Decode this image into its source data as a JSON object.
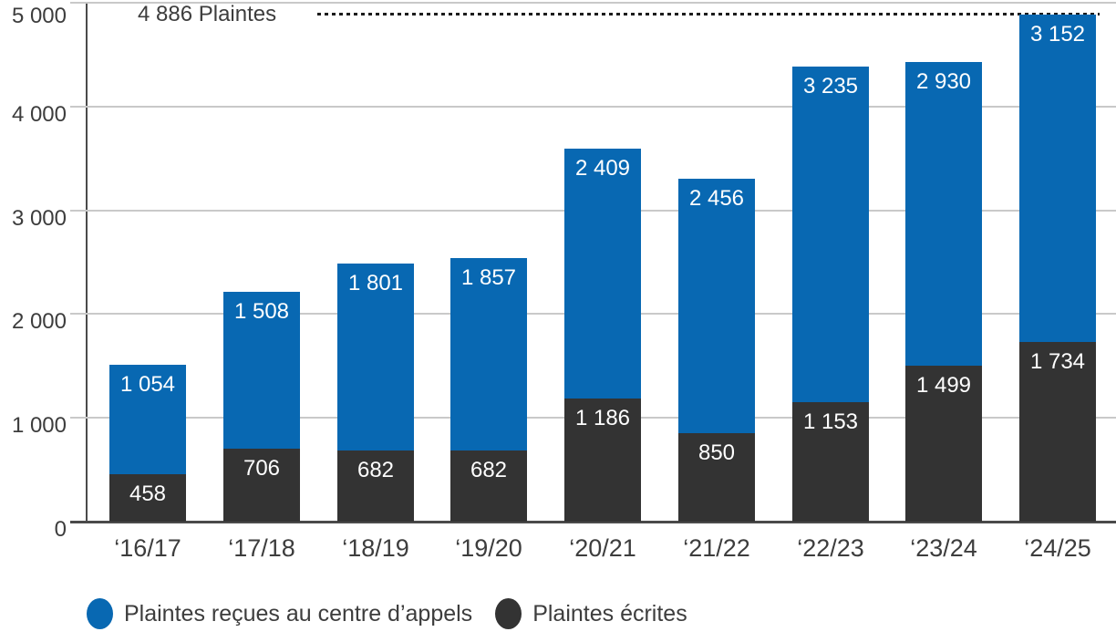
{
  "chart_data": {
    "type": "bar",
    "stacked": true,
    "title": "",
    "xlabel": "",
    "ylabel": "",
    "ylim": [
      0,
      5000
    ],
    "grid": true,
    "legend_position": "bottom",
    "categories": [
      "‘16/17",
      "‘17/18",
      "‘18/19",
      "‘19/20",
      "‘20/21",
      "‘21/22",
      "‘22/23",
      "‘23/24",
      "‘24/25"
    ],
    "series": [
      {
        "name": "Plaintes reçues au centre d’appels",
        "color": "#0868B2",
        "values": [
          1054,
          1508,
          1801,
          1857,
          2409,
          2456,
          3235,
          2930,
          3152
        ],
        "display": [
          "1 054",
          "1 508",
          "1 801",
          "1 857",
          "2 409",
          "2 456",
          "3 235",
          "2 930",
          "3 152"
        ]
      },
      {
        "name": "Plaintes écrites",
        "color": "#333333",
        "values": [
          458,
          706,
          682,
          682,
          1186,
          850,
          1153,
          1499,
          1734
        ],
        "display": [
          "458",
          "706",
          "682",
          "682",
          "1 186",
          "850",
          "1 153",
          "1 499",
          "1 734"
        ]
      }
    ],
    "yticks": [
      {
        "value": 0,
        "label": "0"
      },
      {
        "value": 1000,
        "label": "1 000"
      },
      {
        "value": 2000,
        "label": "2 000"
      },
      {
        "value": 3000,
        "label": "3 000"
      },
      {
        "value": 4000,
        "label": "4 000"
      },
      {
        "value": 5000,
        "label": "5 000"
      }
    ],
    "annotation": {
      "text": "4 886 Plaintes",
      "value": 4886
    },
    "colors": {
      "grid": "#c9c9c9",
      "axis": "#4a4a4a",
      "text": "#3d3d3d",
      "bar_label": "#ffffff",
      "annotation_line": "#1c1c1c"
    }
  }
}
